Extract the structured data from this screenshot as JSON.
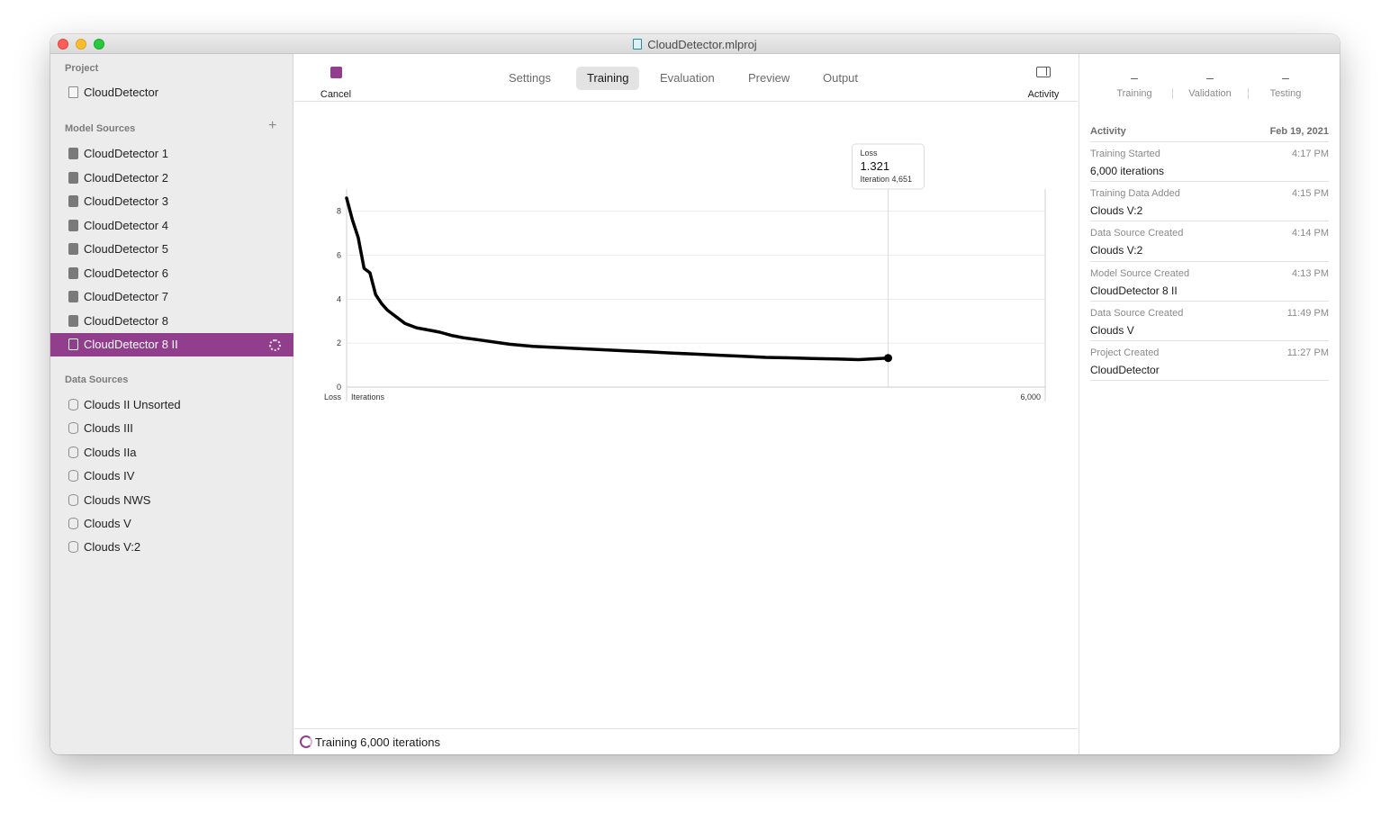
{
  "window": {
    "title": "CloudDetector.mlproj"
  },
  "sidebar": {
    "project_label": "Project",
    "project_name": "CloudDetector",
    "model_sources_label": "Model Sources",
    "add_symbol": "+",
    "models": [
      "CloudDetector 1",
      "CloudDetector 2",
      "CloudDetector 3",
      "CloudDetector 4",
      "CloudDetector 5",
      "CloudDetector 6",
      "CloudDetector 7",
      "CloudDetector 8",
      "CloudDetector 8 II"
    ],
    "selected_model_index": 8,
    "data_sources_label": "Data Sources",
    "data_sources": [
      "Clouds II Unsorted",
      "Clouds III",
      "Clouds IIa",
      "Clouds IV",
      "Clouds NWS",
      "Clouds V",
      "Clouds V:2"
    ]
  },
  "toolbar": {
    "cancel_label": "Cancel",
    "activity_label": "Activity",
    "tabs": [
      "Settings",
      "Training",
      "Evaluation",
      "Preview",
      "Output"
    ],
    "active_tab": "Training"
  },
  "chart_data": {
    "type": "line",
    "ylabel": "Loss",
    "xlabel": "Iterations",
    "x_max_label": "6,000",
    "xlim": [
      0,
      6000
    ],
    "ylim": [
      0,
      8.6
    ],
    "yticks": [
      0,
      2,
      4,
      6,
      8
    ],
    "series": [
      {
        "x": [
          0,
          50,
          100,
          150,
          200,
          250,
          300,
          350,
          400,
          500,
          600,
          700,
          800,
          900,
          1000,
          1200,
          1400,
          1600,
          1800,
          2000,
          2200,
          2400,
          2600,
          2800,
          3000,
          3200,
          3400,
          3600,
          3800,
          4000,
          4200,
          4400,
          4651
        ],
        "y": [
          8.6,
          7.6,
          6.8,
          5.4,
          5.2,
          4.2,
          3.8,
          3.5,
          3.3,
          2.9,
          2.7,
          2.6,
          2.5,
          2.35,
          2.25,
          2.1,
          1.95,
          1.85,
          1.8,
          1.75,
          1.7,
          1.65,
          1.6,
          1.55,
          1.5,
          1.45,
          1.4,
          1.35,
          1.33,
          1.3,
          1.28,
          1.25,
          1.321
        ]
      }
    ],
    "tooltip": {
      "title": "Loss",
      "value": "1.321",
      "iteration": "Iteration 4,651"
    }
  },
  "status": {
    "text": "Training 6,000 iterations"
  },
  "right_panel": {
    "stats": [
      {
        "value": "–",
        "label": "Training"
      },
      {
        "value": "–",
        "label": "Validation"
      },
      {
        "value": "–",
        "label": "Testing"
      }
    ],
    "activity_label": "Activity",
    "activity_date": "Feb 19, 2021",
    "activities": [
      {
        "event": "Training Started",
        "time": "4:17 PM",
        "detail": "6,000 iterations"
      },
      {
        "event": "Training Data Added",
        "time": "4:15 PM",
        "detail": "Clouds V:2"
      },
      {
        "event": "Data Source Created",
        "time": "4:14 PM",
        "detail": "Clouds V:2"
      },
      {
        "event": "Model Source Created",
        "time": "4:13 PM",
        "detail": "CloudDetector 8 II"
      },
      {
        "event": "Data Source Created",
        "time": "11:49 PM",
        "detail": "Clouds V"
      },
      {
        "event": "Project Created",
        "time": "11:27 PM",
        "detail": "CloudDetector"
      }
    ]
  }
}
